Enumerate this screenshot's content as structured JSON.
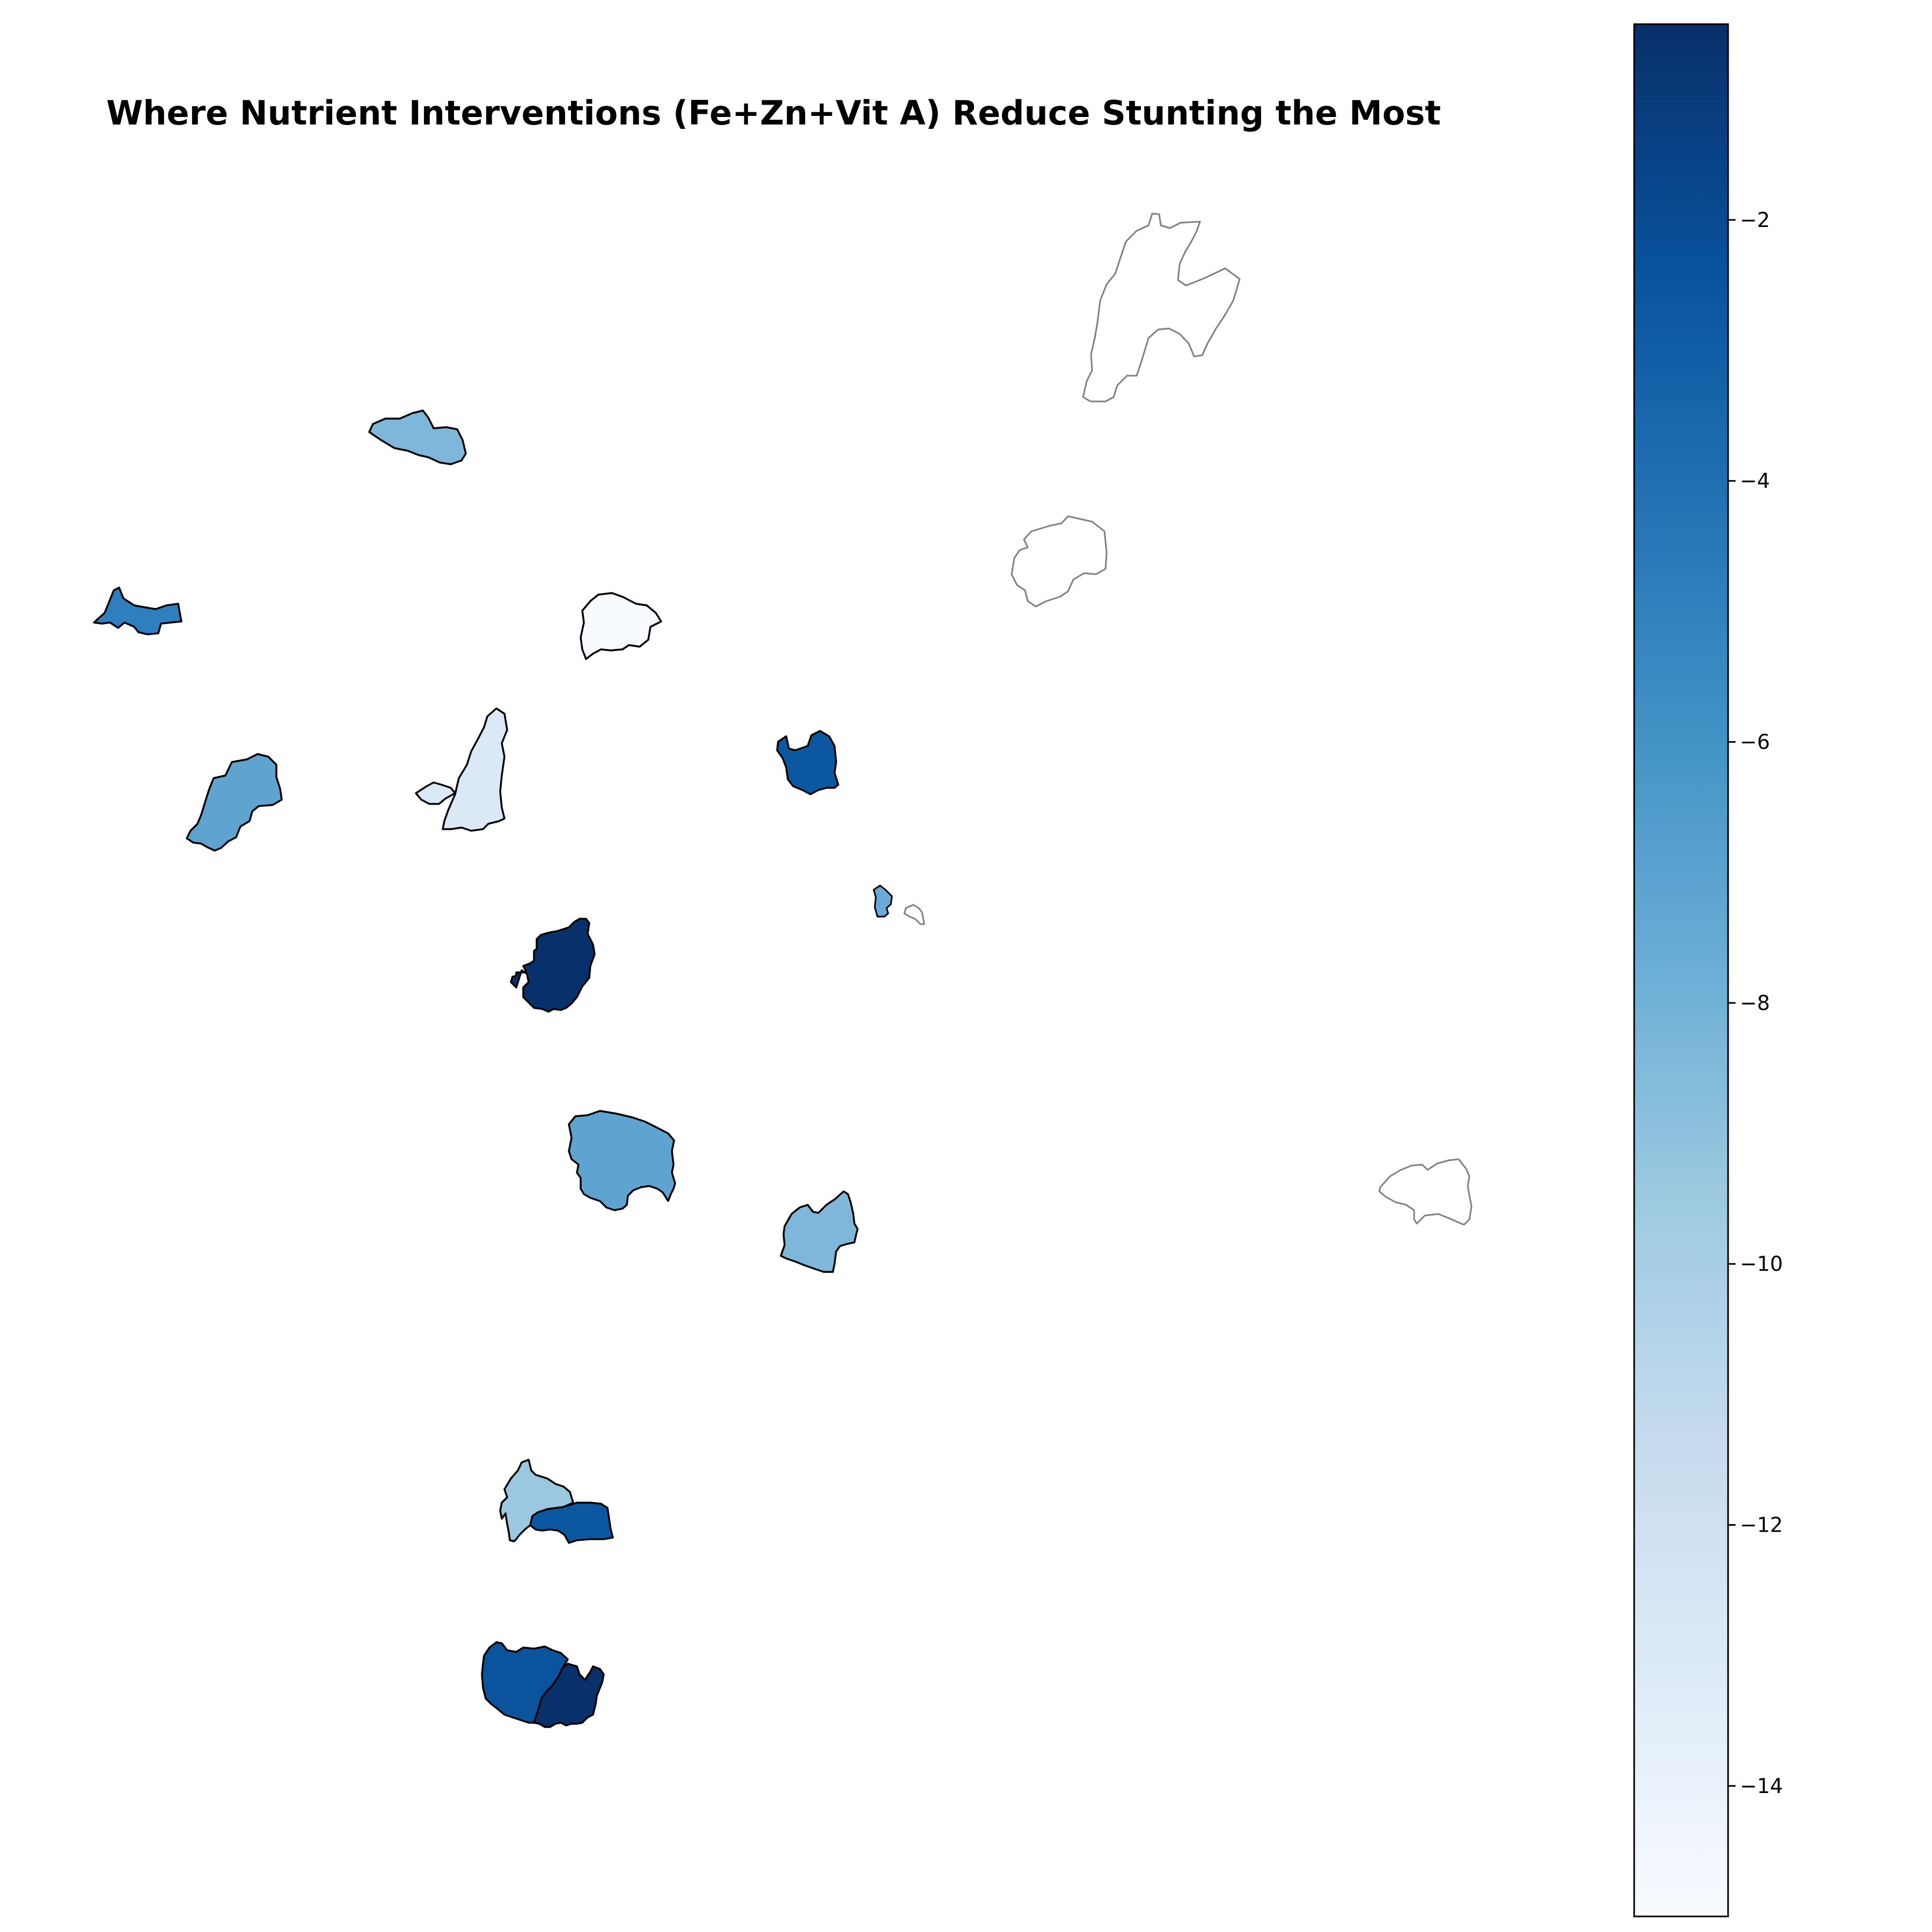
{
  "title": "Where Nutrient Interventions (Fe+Zn+Vit A) Reduce Stunting the Most",
  "colorbar": {
    "colormap": "Blues_reversed",
    "vmin": -15,
    "vmax": -0.5,
    "ticks": [
      {
        "value": -2,
        "label": "−2"
      },
      {
        "value": -4,
        "label": "−4"
      },
      {
        "value": -6,
        "label": "−6"
      },
      {
        "value": -8,
        "label": "−8"
      },
      {
        "value": -10,
        "label": "−10"
      },
      {
        "value": -12,
        "label": "−12"
      },
      {
        "value": -14,
        "label": "−14"
      }
    ]
  },
  "regions": [
    {
      "id": "region-1",
      "value": null
    },
    {
      "id": "region-2",
      "value": -8
    },
    {
      "id": "region-3",
      "value": null
    },
    {
      "id": "region-4",
      "value": -4.5
    },
    {
      "id": "region-5",
      "value": -15
    },
    {
      "id": "region-6",
      "value": -7
    },
    {
      "id": "region-7",
      "value": -13
    },
    {
      "id": "region-8",
      "value": -13
    },
    {
      "id": "region-9",
      "value": -2.5
    },
    {
      "id": "region-10",
      "value": -7.5
    },
    {
      "id": "region-11",
      "value": null
    },
    {
      "id": "region-12",
      "value": -0.8
    },
    {
      "id": "region-13",
      "value": -7
    },
    {
      "id": "region-14",
      "value": -8
    },
    {
      "id": "region-15",
      "value": null
    },
    {
      "id": "region-16",
      "value": -9.5
    },
    {
      "id": "region-17",
      "value": -2.3
    },
    {
      "id": "region-18",
      "value": -2.3
    },
    {
      "id": "region-19",
      "value": -0.6
    }
  ]
}
